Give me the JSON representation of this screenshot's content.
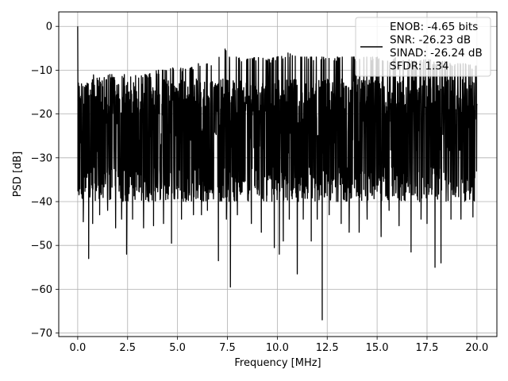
{
  "chart_data": {
    "type": "line",
    "xlabel": "Frequency [MHz]",
    "ylabel": "PSD [dB]",
    "xlim": [
      -0.95,
      21.0
    ],
    "ylim": [
      -70.8,
      3.3
    ],
    "xticks": [
      0.0,
      2.5,
      5.0,
      7.5,
      10.0,
      12.5,
      15.0,
      17.5,
      20.0
    ],
    "xtick_labels": [
      "0.0",
      "2.5",
      "5.0",
      "7.5",
      "10.0",
      "12.5",
      "15.0",
      "17.5",
      "20.0"
    ],
    "yticks": [
      0,
      -10,
      -20,
      -30,
      -40,
      -50,
      -60,
      -70
    ],
    "ytick_labels": [
      "0",
      "−10",
      "−20",
      "−30",
      "−40",
      "−50",
      "−60",
      "−70"
    ],
    "grid": true,
    "legend_position": "top-right",
    "legend": {
      "lines": [
        "ENOB: -4.65 bits",
        "SNR: -26.23 dB",
        "SINAD: -26.24 dB",
        "SFDR: 1.34"
      ]
    },
    "series": [
      {
        "color": "#000000",
        "x_range": [
          0.0,
          20.0
        ],
        "peak": {
          "x": 0.0,
          "y": 0.0
        },
        "upper_envelope": [
          [
            0.05,
            -13
          ],
          [
            0.3,
            -15
          ],
          [
            0.8,
            -12
          ],
          [
            1.2,
            -13
          ],
          [
            1.6,
            -12
          ],
          [
            2.0,
            -12
          ],
          [
            2.5,
            -12
          ],
          [
            3.0,
            -12
          ],
          [
            3.5,
            -12
          ],
          [
            4.0,
            -11
          ],
          [
            4.5,
            -11
          ],
          [
            5.0,
            -10
          ],
          [
            5.5,
            -11
          ],
          [
            6.0,
            -9.5
          ],
          [
            6.5,
            -9
          ],
          [
            7.0,
            -9
          ],
          [
            7.3,
            -5.5
          ],
          [
            7.6,
            -8
          ],
          [
            8.0,
            -8
          ],
          [
            8.5,
            -8.5
          ],
          [
            9.0,
            -8
          ],
          [
            9.5,
            -8.5
          ],
          [
            10.0,
            -8
          ],
          [
            10.5,
            -7
          ],
          [
            11.0,
            -8
          ],
          [
            11.5,
            -8
          ],
          [
            12.0,
            -8
          ],
          [
            12.5,
            -8
          ],
          [
            13.0,
            -8
          ],
          [
            13.5,
            -8
          ],
          [
            14.0,
            -8
          ],
          [
            14.5,
            -8
          ],
          [
            15.0,
            -8
          ],
          [
            15.5,
            -9
          ],
          [
            16.0,
            -8
          ],
          [
            16.5,
            -8.5
          ],
          [
            17.0,
            -9
          ],
          [
            17.5,
            -8.5
          ],
          [
            18.0,
            -9
          ],
          [
            18.5,
            -9
          ],
          [
            19.0,
            -9.5
          ],
          [
            19.5,
            -9.5
          ],
          [
            20.0,
            -10
          ]
        ],
        "upper_mean": -16,
        "lower_mean": -36,
        "deep_minima": [
          [
            0.28,
            -44.6
          ],
          [
            0.55,
            -53.0
          ],
          [
            0.75,
            -45
          ],
          [
            1.1,
            -43
          ],
          [
            1.5,
            -42
          ],
          [
            1.9,
            -46
          ],
          [
            2.2,
            -44
          ],
          [
            2.45,
            -52.0
          ],
          [
            2.75,
            -44
          ],
          [
            3.3,
            -46
          ],
          [
            3.8,
            -45.5
          ],
          [
            4.3,
            -45
          ],
          [
            4.7,
            -49.5
          ],
          [
            5.2,
            -44
          ],
          [
            5.8,
            -43
          ],
          [
            6.2,
            -43
          ],
          [
            6.5,
            -42
          ],
          [
            7.05,
            -53.5
          ],
          [
            7.45,
            -44
          ],
          [
            7.65,
            -59.5
          ],
          [
            8.0,
            -43
          ],
          [
            8.7,
            -45
          ],
          [
            9.2,
            -47
          ],
          [
            9.85,
            -50.5
          ],
          [
            10.1,
            -52
          ],
          [
            10.3,
            -49
          ],
          [
            10.6,
            -44
          ],
          [
            11.0,
            -56.5
          ],
          [
            11.3,
            -44
          ],
          [
            11.7,
            -49
          ],
          [
            12.0,
            -44
          ],
          [
            12.25,
            -67.0
          ],
          [
            12.6,
            -43
          ],
          [
            13.2,
            -45
          ],
          [
            13.6,
            -47
          ],
          [
            14.1,
            -47
          ],
          [
            14.5,
            -44
          ],
          [
            15.2,
            -48
          ],
          [
            15.6,
            -42
          ],
          [
            16.1,
            -45.5
          ],
          [
            16.7,
            -51.5
          ],
          [
            17.2,
            -44
          ],
          [
            17.5,
            -45
          ],
          [
            17.9,
            -55
          ],
          [
            18.2,
            -54
          ],
          [
            18.7,
            -44
          ],
          [
            19.2,
            -44
          ],
          [
            19.8,
            -43.5
          ]
        ]
      }
    ]
  }
}
